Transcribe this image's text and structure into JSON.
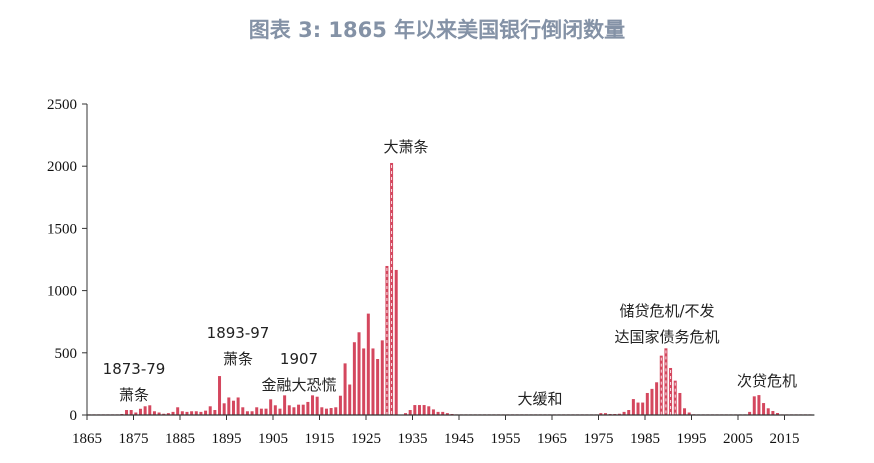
{
  "chart_data": {
    "type": "bar",
    "title": "图表 3:  1865 年以来美国银行倒闭数量",
    "xlabel": "",
    "ylabel": "",
    "ylim": [
      0,
      2500
    ],
    "yticks": [
      0,
      500,
      1000,
      1500,
      2000,
      2500
    ],
    "xticks": [
      1865,
      1875,
      1885,
      1895,
      1905,
      1915,
      1925,
      1935,
      1945,
      1955,
      1965,
      1975,
      1985,
      1995,
      2005,
      2015
    ],
    "xlim": [
      1865,
      2021
    ],
    "grid": false,
    "bar_color": "#d4475e",
    "highlight_years": [
      1929,
      1930,
      1988,
      1989,
      1990,
      1991
    ],
    "years": [
      1865,
      1866,
      1867,
      1868,
      1869,
      1870,
      1871,
      1872,
      1873,
      1874,
      1875,
      1876,
      1877,
      1878,
      1879,
      1880,
      1881,
      1882,
      1883,
      1884,
      1885,
      1886,
      1887,
      1888,
      1889,
      1890,
      1891,
      1892,
      1893,
      1894,
      1895,
      1896,
      1897,
      1898,
      1899,
      1900,
      1901,
      1902,
      1903,
      1904,
      1905,
      1906,
      1907,
      1908,
      1909,
      1910,
      1911,
      1912,
      1913,
      1914,
      1915,
      1916,
      1917,
      1918,
      1919,
      1920,
      1921,
      1922,
      1923,
      1924,
      1925,
      1926,
      1927,
      1928,
      1929,
      1930,
      1931,
      1932,
      1933,
      1934,
      1935,
      1936,
      1937,
      1938,
      1939,
      1940,
      1941,
      1942,
      1943,
      1944,
      1945,
      1946,
      1947,
      1948,
      1949,
      1950,
      1951,
      1952,
      1953,
      1954,
      1955,
      1956,
      1957,
      1958,
      1959,
      1960,
      1961,
      1962,
      1963,
      1964,
      1965,
      1966,
      1967,
      1968,
      1969,
      1970,
      1971,
      1972,
      1973,
      1974,
      1975,
      1976,
      1977,
      1978,
      1979,
      1980,
      1981,
      1982,
      1983,
      1984,
      1985,
      1986,
      1987,
      1988,
      1989,
      1990,
      1991,
      1992,
      1993,
      1994,
      1995,
      1996,
      1997,
      1998,
      1999,
      2000,
      2001,
      2002,
      2003,
      2004,
      2005,
      2006,
      2007,
      2008,
      2009,
      2010,
      2011,
      2012,
      2013,
      2014,
      2015,
      2016,
      2017,
      2018,
      2019,
      2020
    ],
    "values": [
      5,
      5,
      5,
      5,
      5,
      5,
      5,
      8,
      40,
      40,
      20,
      50,
      70,
      78,
      30,
      20,
      10,
      15,
      25,
      62,
      30,
      25,
      30,
      30,
      25,
      35,
      70,
      40,
      313,
      94,
      141,
      115,
      141,
      62,
      30,
      30,
      62,
      51,
      51,
      126,
      78,
      51,
      158,
      78,
      62,
      83,
      83,
      105,
      158,
      147,
      62,
      51,
      56,
      62,
      155,
      415,
      245,
      585,
      665,
      535,
      815,
      535,
      450,
      600,
      1198,
      2026,
      1166,
      0,
      15,
      40,
      80,
      80,
      80,
      70,
      45,
      25,
      25,
      15,
      8,
      5,
      5,
      5,
      5,
      5,
      5,
      5,
      5,
      5,
      5,
      5,
      5,
      5,
      5,
      5,
      5,
      5,
      5,
      5,
      5,
      5,
      5,
      5,
      5,
      5,
      5,
      5,
      5,
      5,
      5,
      5,
      15,
      15,
      8,
      8,
      10,
      25,
      40,
      128,
      100,
      100,
      177,
      210,
      263,
      477,
      536,
      378,
      276,
      177,
      54,
      20,
      6,
      5,
      5,
      5,
      5,
      5,
      5,
      5,
      5,
      5,
      5,
      5,
      25,
      150,
      160,
      96,
      54,
      32,
      16,
      5,
      5,
      5,
      5,
      5,
      5,
      5
    ],
    "annotations": [
      {
        "lines": [
          "1873-79",
          "萧条"
        ]
      },
      {
        "lines": [
          "1893-97",
          "萧条"
        ]
      },
      {
        "lines": [
          "1907",
          "金融大恐慌"
        ]
      },
      {
        "lines": [
          "大萧条"
        ]
      },
      {
        "lines": [
          "大缓和"
        ]
      },
      {
        "lines": [
          "储贷危机/不发",
          "达国家债务危机"
        ]
      },
      {
        "lines": [
          "次贷危机"
        ]
      }
    ]
  }
}
